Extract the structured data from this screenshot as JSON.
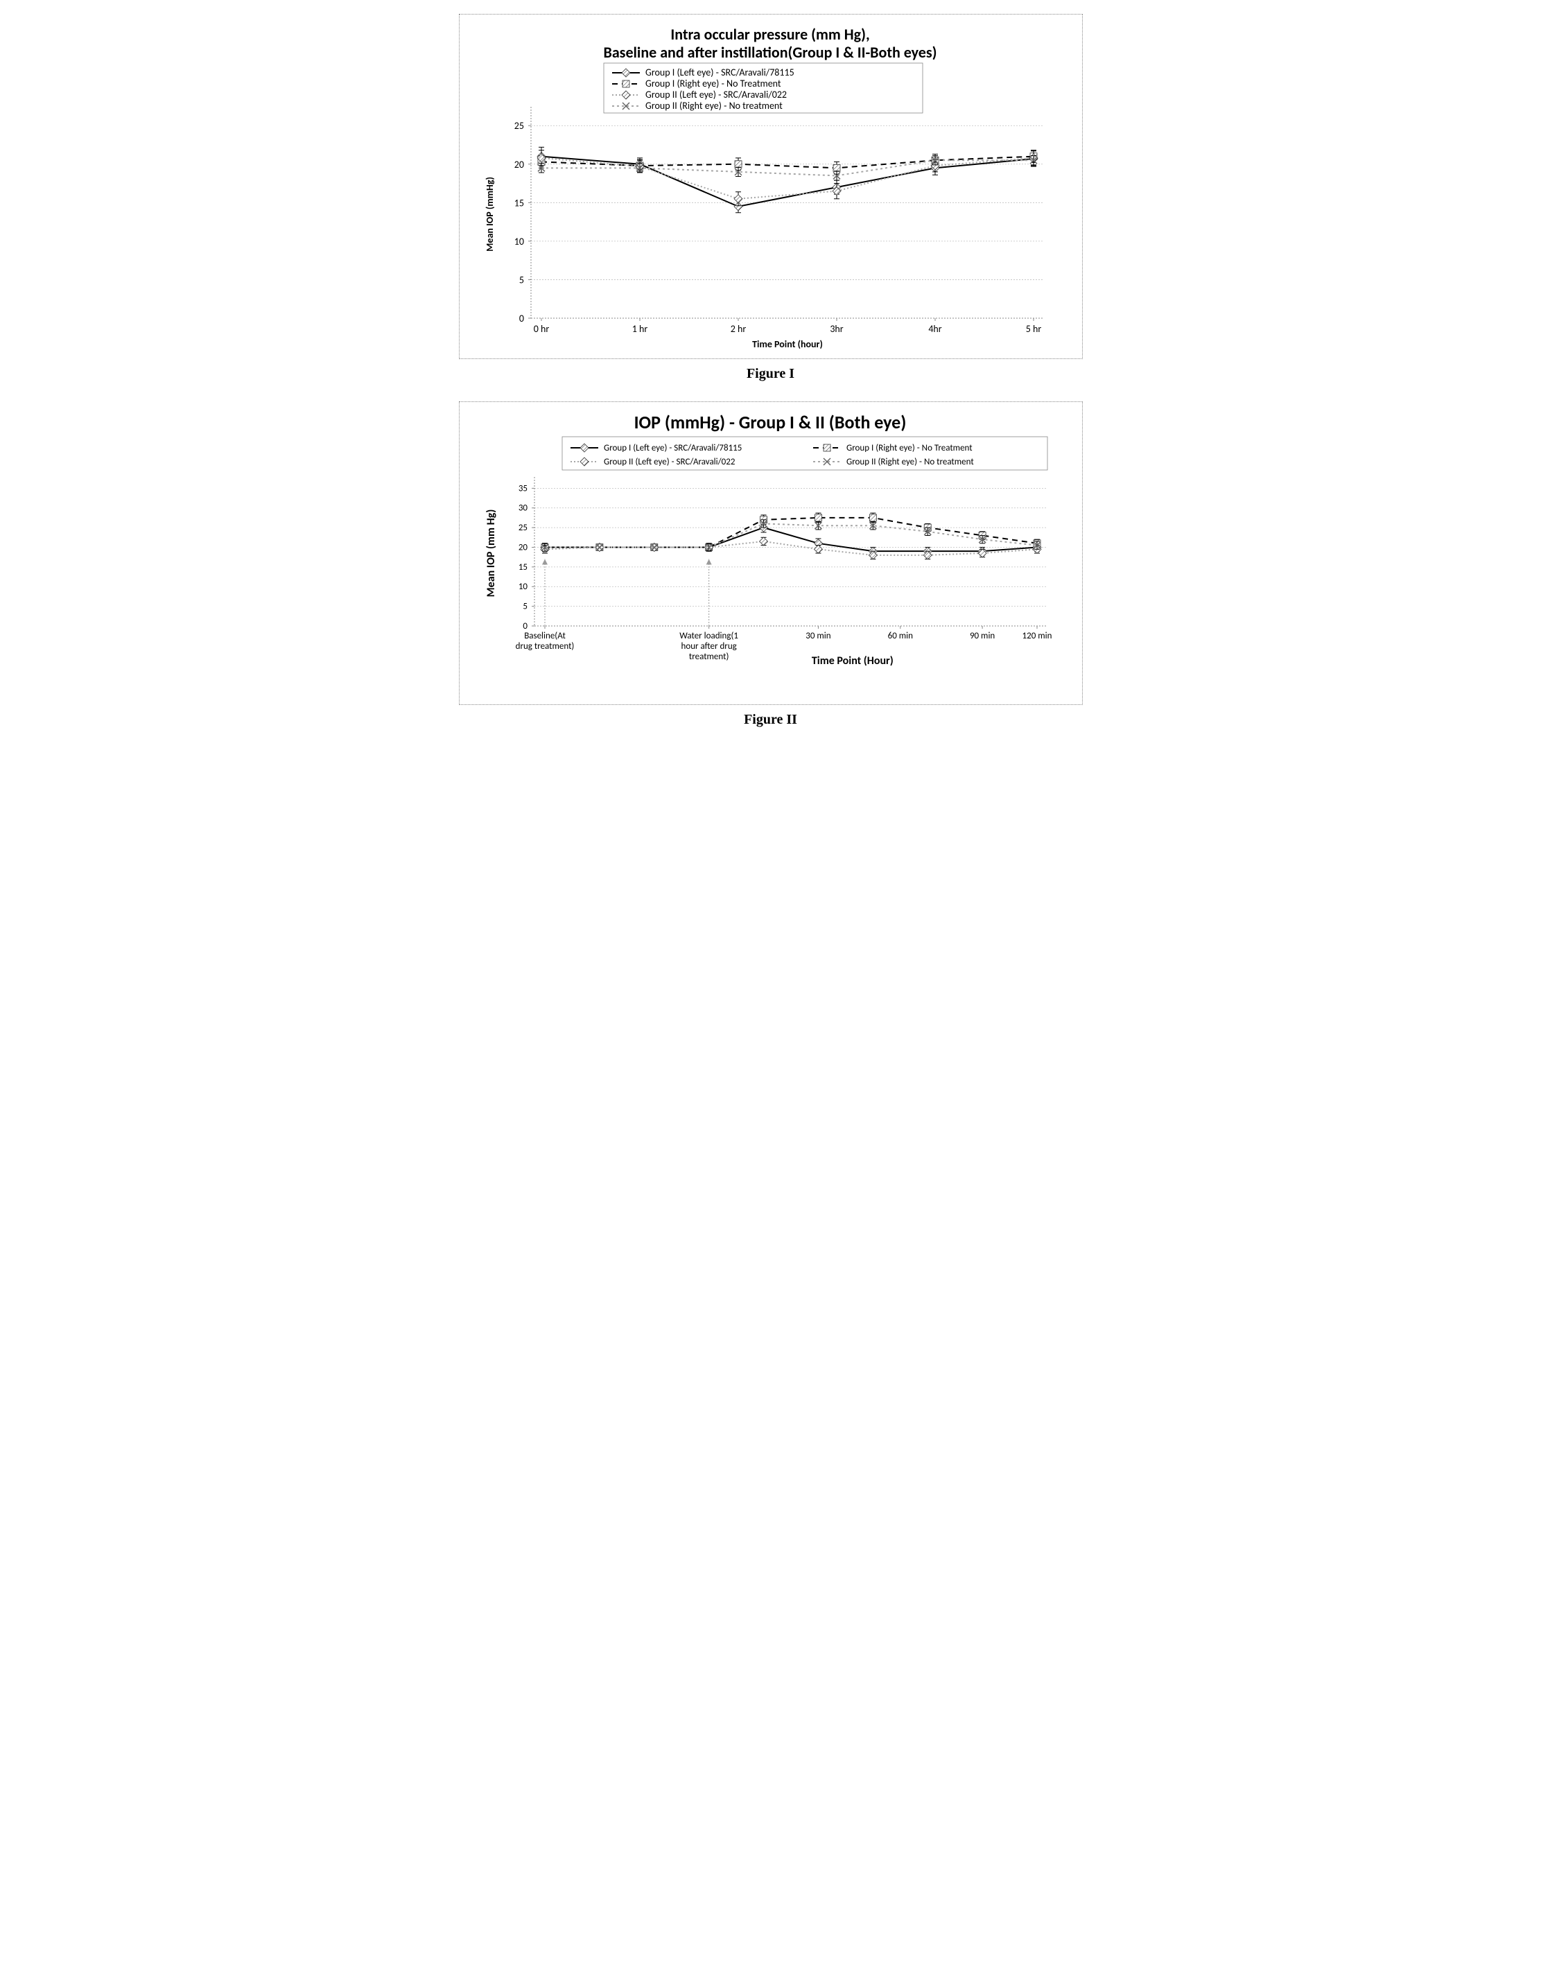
{
  "figure1": {
    "type": "line",
    "caption": "Figure I",
    "title_line1": "Intra occular pressure (mm Hg),",
    "title_line2": "Baseline and after instillation(Group I & II-Both eyes)",
    "title_fontsize": 22,
    "title_fontweight": "bold",
    "ylabel": "Mean IOP (mmHg)",
    "xlabel": "Time Point (hour)",
    "axis_label_fontsize": 14,
    "axis_label_fontweight": "bold",
    "tick_fontsize": 14,
    "ylim": [
      0,
      27
    ],
    "yticks": [
      0,
      5,
      10,
      15,
      20,
      25
    ],
    "xcats": [
      "0 hr",
      "1 hr",
      "2 hr",
      "3hr",
      "4hr",
      "5 hr"
    ],
    "grid_color": "#bfbfbf",
    "grid_dash": "2,2",
    "axis_color": "#888888",
    "background_color": "#ffffff",
    "legend_box": true,
    "legend_fontsize": 14,
    "series": [
      {
        "name": "Group I (Left eye) - SRC/Aravali/78115",
        "color": "#000000",
        "dash": "",
        "marker": "diamond_hatch",
        "y": [
          21.0,
          20.0,
          14.5,
          17.0,
          19.5,
          20.7
        ],
        "err": [
          1.2,
          0.8,
          0.8,
          0.9,
          0.9,
          1.0
        ]
      },
      {
        "name": "Group I (Right eye) - No Treatment",
        "color": "#000000",
        "dash": "8,6",
        "marker": "square_hatch",
        "y": [
          20.3,
          19.8,
          20.0,
          19.5,
          20.5,
          21.0
        ],
        "err": [
          0.8,
          0.8,
          0.8,
          0.8,
          0.8,
          0.8
        ]
      },
      {
        "name": "Group II (Left eye) - SRC/Aravali/022",
        "color": "#a6a6a6",
        "dash": "2,3",
        "marker": "diamond_hatch",
        "y": [
          20.8,
          19.7,
          15.5,
          16.5,
          19.8,
          20.8
        ],
        "err": [
          1.0,
          0.8,
          0.9,
          1.0,
          0.8,
          1.0
        ]
      },
      {
        "name": "Group II (Right eye) - No treatment",
        "color": "#a6a6a6",
        "dash": "3,4",
        "marker": "x",
        "y": [
          19.5,
          19.5,
          19.0,
          18.5,
          20.5,
          20.5
        ],
        "err": [
          0.6,
          0.6,
          0.6,
          0.6,
          0.6,
          0.6
        ]
      }
    ]
  },
  "figure2": {
    "type": "line",
    "caption": "Figure II",
    "title": "IOP (mmHg) - Group I & II (Both eye)",
    "title_fontsize": 26,
    "title_fontweight": "bold",
    "ylabel": "Mean IOP (mm Hg)",
    "xlabel": "Time Point (Hour)",
    "axis_label_fontsize": 16,
    "axis_label_fontweight": "bold",
    "tick_fontsize": 13,
    "ylim": [
      0,
      37
    ],
    "yticks": [
      0,
      5,
      10,
      15,
      20,
      25,
      30,
      35
    ],
    "xcats": [
      "Baseline(At drug treatment)",
      "",
      "",
      "Water loading(1 hour after drug treatment)",
      "30 min",
      "60 min",
      "90 min",
      "120 min"
    ],
    "grid_color": "#bfbfbf",
    "grid_dash": "2,2",
    "axis_color": "#888888",
    "background_color": "#ffffff",
    "legend_box": true,
    "legend_fontsize": 13,
    "legend_cols": 2,
    "arrows_at_x": [
      0,
      3
    ],
    "series": [
      {
        "name": "Group I (Left eye) - SRC/Aravali/78115",
        "color": "#000000",
        "dash": "",
        "marker": "diamond_hatch",
        "y": [
          20,
          20,
          20,
          20,
          25,
          21,
          19,
          19,
          19,
          20
        ],
        "err": [
          1,
          0,
          0,
          0.8,
          1.2,
          1.2,
          1.0,
          1.0,
          1.0,
          1.0
        ]
      },
      {
        "name": "Group I (Right eye) - No Treatment",
        "color": "#000000",
        "dash": "8,6",
        "marker": "square_hatch",
        "y": [
          20,
          20,
          20,
          20,
          27,
          27.5,
          27.5,
          25,
          23,
          21,
          20.5
        ],
        "err": [
          1,
          0,
          0,
          1,
          1.2,
          1.2,
          1.2,
          1.0,
          1.0,
          1.0,
          1.0
        ],
        "xidx": [
          0,
          1,
          2,
          3,
          4,
          5,
          6,
          7,
          8,
          9
        ]
      },
      {
        "name": "Group II (Left eye) - SRC/Aravali/022",
        "color": "#a6a6a6",
        "dash": "2,3",
        "marker": "diamond_hatch",
        "y": [
          19.5,
          20,
          20,
          20,
          21.5,
          19.5,
          18,
          18,
          18.5,
          19.5
        ],
        "err": [
          1,
          0,
          0,
          0.8,
          1,
          1,
          1,
          1,
          1,
          1
        ]
      },
      {
        "name": "Group II (Right eye) - No treatment",
        "color": "#a6a6a6",
        "dash": "3,4",
        "marker": "x",
        "y": [
          20,
          20,
          20,
          20,
          26,
          25.5,
          25.5,
          24,
          22,
          20.5,
          20
        ],
        "err": [
          1,
          0,
          0,
          1,
          1,
          1,
          1,
          1,
          1,
          1,
          1
        ],
        "xidx": [
          0,
          1,
          2,
          3,
          4,
          5,
          6,
          7,
          8,
          9
        ]
      }
    ],
    "xpoints": 10
  }
}
